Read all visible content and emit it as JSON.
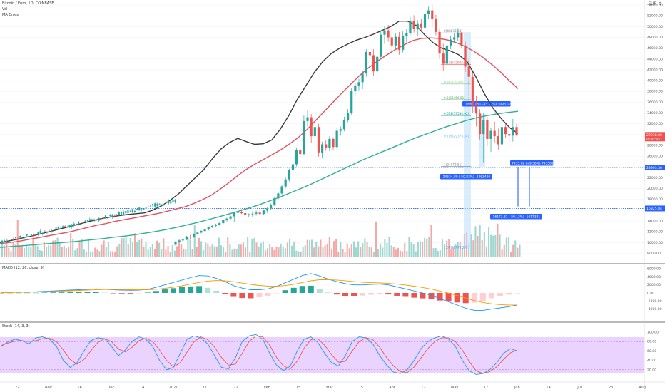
{
  "legend": {
    "symbol": "Bitcoin / Euro, 1D, COINBASE",
    "vol": "Vol",
    "ma_cross": "MA Cross",
    "macd": "MACD (12, 26, close, 9)",
    "stoch": "Stoch (14, 3, 3)"
  },
  "top_right": {
    "currency": "EUR",
    "settings_icon": "gear-icon"
  },
  "colors": {
    "up": "#26a69a",
    "down": "#ef5350",
    "ma_black": "#3a3a3a",
    "ma_red": "#e05360",
    "ma_teal": "#2fb093",
    "level_line": "#2962ff",
    "stoch_band": "#e6ccff",
    "macd_line": "#2196f3",
    "signal_line": "#ff9800",
    "stoch_k": "#2196f3",
    "stoch_d": "#ef5350",
    "fib_0": "#787b86",
    "fib_0236": "#ef5350",
    "fib_0382": "#81c784",
    "fib_05": "#4caf50",
    "fib_0618": "#009688",
    "fib_0786": "#64b5f6",
    "fib_1": "#787b86",
    "fib_1618": "#2196f3"
  },
  "chart_data": {
    "type": "candlestick",
    "title": "Bitcoin / Euro, 1D, COINBASE",
    "y_ticks": [
      "54000.00",
      "52000.00",
      "50000.00",
      "48000.00",
      "46000.00",
      "44000.00",
      "42000.00",
      "40000.00",
      "38000.00",
      "36000.00",
      "34000.00",
      "32000.00",
      "30000.00",
      "28000.00",
      "26000.00",
      "24000.00",
      "22000.00",
      "20000.00",
      "18000.00",
      "16000.00",
      "14000.00",
      "12000.00",
      "10000.00",
      "8000.00"
    ],
    "x_ticks": [
      "22",
      "Nov",
      "16",
      "Dec",
      "14",
      "2021",
      "11",
      "22",
      "Feb",
      "15",
      "Mar",
      "15",
      "Apr",
      "12",
      "May",
      "17",
      "Jun",
      "14",
      "Jul",
      "23",
      "Aug"
    ],
    "price_axis_labels": [
      {
        "text": "29938.00",
        "sub": "01:02:05",
        "price": 29938,
        "color": "#ef5350"
      },
      {
        "text": "23903.30",
        "price": 23903,
        "color": "#2962ff"
      },
      {
        "text": "16325.84",
        "price": 16326,
        "color": "#2962ff"
      }
    ],
    "horizontal_levels": [
      23903,
      16326
    ],
    "fib_levels": [
      {
        "label": "0(48836.24)",
        "ratio": 0,
        "price": 48836
      },
      {
        "label": "0.236(42992.02)",
        "ratio": 0.236,
        "price": 42992
      },
      {
        "label": "0.382(39378.11)",
        "ratio": 0.382,
        "price": 39378
      },
      {
        "label": "0.5(36456.51)",
        "ratio": 0.5,
        "price": 36456
      },
      {
        "label": "0.618(33534.92)",
        "ratio": 0.618,
        "price": 33535
      },
      {
        "label": "0.786(29375.34)",
        "ratio": 0.786,
        "price": 29375
      },
      {
        "label": "1(24076.51)",
        "ratio": 1,
        "price": 24077
      },
      {
        "label": "1.618(8776.55)",
        "ratio": 1.618,
        "price": 8777
      }
    ],
    "measure_labels": [
      {
        "text": "10963.18 (+45.52%) 1096318",
        "price": 35100
      },
      {
        "text": "-24634.80 (-50.83%) -2463480",
        "price": 23400
      },
      {
        "text": "7935.02 (+9.38%) 793502",
        "price": 24900
      },
      {
        "text": "-16173.31 (-50.13%) -1617331",
        "price": 15300
      }
    ],
    "candles_ohlc": [
      [
        9600,
        10300,
        9450,
        10150
      ],
      [
        10150,
        10600,
        10050,
        10400
      ],
      [
        10400,
        10900,
        10200,
        10550
      ],
      [
        10550,
        11250,
        10450,
        11100
      ],
      [
        11100,
        11400,
        10700,
        11000
      ],
      [
        11000,
        11700,
        10900,
        11600
      ],
      [
        11600,
        12000,
        11450,
        11850
      ],
      [
        11850,
        12300,
        11700,
        12150
      ],
      [
        12150,
        12500,
        11950,
        12400
      ],
      [
        12400,
        13000,
        12250,
        12900
      ],
      [
        12900,
        13200,
        12700,
        13100
      ],
      [
        13100,
        13500,
        12800,
        13300
      ],
      [
        13300,
        13700,
        13150,
        13600
      ],
      [
        13600,
        14300,
        13400,
        14200
      ],
      [
        14200,
        14600,
        13900,
        14450
      ],
      [
        14450,
        15000,
        14300,
        14850
      ],
      [
        14850,
        15700,
        13900,
        15500
      ],
      [
        15500,
        16000,
        15100,
        15700
      ],
      [
        15700,
        16200,
        15300,
        15450
      ],
      [
        15450,
        15900,
        14600,
        15100
      ],
      [
        15100,
        15400,
        14700,
        15250
      ],
      [
        15250,
        15800,
        14800,
        15350
      ],
      [
        15350,
        15900,
        15000,
        15550
      ],
      [
        15550,
        16000,
        15200,
        15300
      ],
      [
        15300,
        16100,
        15050,
        15950
      ],
      [
        15950,
        16500,
        15500,
        16300
      ],
      [
        16300,
        17200,
        16100,
        17000
      ],
      [
        17000,
        18500,
        16800,
        18200
      ],
      [
        18200,
        19300,
        17900,
        19100
      ],
      [
        19100,
        20700,
        18900,
        20400
      ],
      [
        20400,
        22000,
        20100,
        21700
      ],
      [
        21700,
        23700,
        21300,
        23400
      ],
      [
        23400,
        24900,
        22900,
        24500
      ],
      [
        24500,
        27500,
        24100,
        27200
      ],
      [
        27200,
        27500,
        26000,
        26400
      ],
      [
        26400,
        33500,
        26200,
        32500
      ],
      [
        32500,
        34500,
        31500,
        33200
      ],
      [
        33200,
        33800,
        28500,
        29700
      ],
      [
        29700,
        32200,
        27300,
        31400
      ],
      [
        31400,
        32000,
        25900,
        26700
      ],
      [
        26700,
        28700,
        25600,
        28200
      ],
      [
        28200,
        28900,
        27000,
        27600
      ],
      [
        27600,
        29700,
        26900,
        29200
      ],
      [
        29200,
        29500,
        27100,
        27700
      ],
      [
        27700,
        31300,
        27300,
        30700
      ],
      [
        30700,
        31500,
        29800,
        31000
      ],
      [
        31000,
        33300,
        30600,
        32700
      ],
      [
        32700,
        34700,
        32300,
        34000
      ],
      [
        34000,
        38700,
        33700,
        38100
      ],
      [
        38100,
        39500,
        37300,
        39100
      ],
      [
        39100,
        40300,
        38200,
        39700
      ],
      [
        39700,
        41900,
        38400,
        41300
      ],
      [
        41300,
        45800,
        40700,
        45300
      ],
      [
        45300,
        46800,
        43200,
        44700
      ],
      [
        44700,
        45800,
        40800,
        41700
      ],
      [
        41700,
        45200,
        40700,
        44400
      ],
      [
        44400,
        49200,
        44000,
        48500
      ],
      [
        48500,
        50100,
        46800,
        49300
      ],
      [
        49300,
        50300,
        47200,
        48000
      ],
      [
        48000,
        49500,
        45200,
        46500
      ],
      [
        46500,
        48700,
        45800,
        48100
      ],
      [
        48100,
        49000,
        44800,
        45700
      ],
      [
        45700,
        49100,
        45200,
        48300
      ],
      [
        48300,
        49500,
        47100,
        48800
      ],
      [
        48800,
        51800,
        48400,
        51000
      ],
      [
        51000,
        52100,
        48900,
        49500
      ],
      [
        49500,
        51200,
        48200,
        50600
      ],
      [
        50600,
        51500,
        49000,
        49800
      ],
      [
        49800,
        52900,
        49500,
        52300
      ],
      [
        52300,
        53700,
        51400,
        53000
      ],
      [
        53000,
        54100,
        49900,
        51500
      ],
      [
        51500,
        52200,
        48400,
        49000
      ],
      [
        49000,
        49700,
        44000,
        45000
      ],
      [
        45000,
        46800,
        41800,
        43100
      ],
      [
        43100,
        47100,
        42900,
        46500
      ],
      [
        46500,
        48300,
        45800,
        47600
      ],
      [
        47600,
        48700,
        46900,
        48000
      ],
      [
        48000,
        49700,
        47400,
        48900
      ],
      [
        48900,
        49000,
        46000,
        46500
      ],
      [
        46500,
        47200,
        41600,
        42600
      ],
      [
        42600,
        44200,
        35300,
        40700
      ],
      [
        40700,
        41600,
        34000,
        35300
      ],
      [
        35300,
        37100,
        31500,
        33900
      ],
      [
        33900,
        34700,
        29100,
        30100
      ],
      [
        30100,
        34000,
        24900,
        32700
      ],
      [
        32700,
        33300,
        27900,
        29200
      ],
      [
        29200,
        31200,
        26800,
        30700
      ],
      [
        30700,
        32400,
        28500,
        29700
      ],
      [
        29700,
        31100,
        27100,
        28200
      ],
      [
        28200,
        32000,
        27900,
        31400
      ],
      [
        31400,
        31900,
        29300,
        30100
      ],
      [
        30100,
        30400,
        27900,
        29800
      ],
      [
        29800,
        32900,
        28700,
        31400
      ],
      [
        31400,
        32000,
        29700,
        29938
      ]
    ],
    "ma_black": [
      10000,
      10300,
      10600,
      11000,
      11300,
      11700,
      12100,
      12500,
      12900,
      13300,
      13700,
      14100,
      14450,
      14750,
      15000,
      15200,
      15350,
      15500,
      16000,
      16800,
      17800,
      19000,
      20500,
      22000,
      23500,
      25500,
      27300,
      28500,
      29300,
      28700,
      28200,
      28300,
      29000,
      31000,
      33500,
      36500,
      39000,
      41500,
      43500,
      45000,
      46000,
      46800,
      47500,
      48000,
      48600,
      49300,
      50000,
      51000,
      51000,
      50200,
      48500,
      47000,
      46000,
      45500,
      44800,
      43500,
      40800,
      37700,
      35000,
      33000,
      31300,
      30200
    ],
    "ma_red": [
      9800,
      10000,
      10200,
      10500,
      10800,
      11100,
      11400,
      11700,
      12000,
      12400,
      12800,
      13200,
      13500,
      13900,
      14200,
      14500,
      14800,
      15100,
      15400,
      15800,
      16200,
      16600,
      17200,
      17900,
      18700,
      19800,
      21000,
      22300,
      23500,
      24500,
      25400,
      26300,
      27200,
      28300,
      29500,
      31000,
      32700,
      34400,
      36100,
      37800,
      39400,
      41000,
      42400,
      43600,
      44700,
      45700,
      46600,
      47400,
      47800,
      47900,
      47800,
      47500,
      47000,
      46300,
      45400,
      44300,
      43000,
      41600,
      40000,
      38500
    ],
    "ma_teal": [
      9100,
      9250,
      9400,
      9550,
      9700,
      9850,
      10000,
      10150,
      10350,
      10550,
      10750,
      11000,
      11200,
      11450,
      11750,
      12050,
      12400,
      12800,
      13250,
      13700,
      14200,
      14700,
      15250,
      15800,
      16400,
      17000,
      17700,
      18400,
      19200,
      20000,
      20800,
      21700,
      22600,
      23500,
      24400,
      25300,
      26100,
      26900,
      27700,
      28500,
      29300,
      30000,
      30700,
      31400,
      32000,
      32600,
      33100,
      33500,
      33850,
      34100,
      34300
    ]
  },
  "macd_panel": {
    "y_ticks": [
      "6000.00",
      "4000.00",
      "2000.00",
      "0.00",
      "-2000.00",
      "-4000.00"
    ],
    "macd": [
      100,
      150,
      200,
      250,
      300,
      400,
      500,
      600,
      700,
      800,
      900,
      1000,
      900,
      800,
      700,
      650,
      700,
      900,
      1400,
      2000,
      2600,
      3200,
      3800,
      4300,
      4200,
      3600,
      2800,
      1800,
      1200,
      800,
      800,
      1000,
      1600,
      2500,
      3400,
      4300,
      4800,
      4200,
      3400,
      2800,
      2300,
      2000,
      2000,
      2100,
      2200,
      2000,
      1500,
      1000,
      500,
      0,
      -600,
      -1400,
      -2200,
      -3000,
      -3800,
      -4300,
      -4300,
      -4000,
      -3700,
      -3400,
      -3000
    ],
    "signal": [
      80,
      110,
      150,
      190,
      240,
      300,
      370,
      450,
      530,
      620,
      710,
      800,
      840,
      850,
      830,
      800,
      780,
      800,
      920,
      1130,
      1420,
      1770,
      2180,
      2600,
      2930,
      3070,
      3010,
      2770,
      2450,
      2120,
      1860,
      1690,
      1670,
      1830,
      2140,
      2570,
      3020,
      3260,
      3290,
      3190,
      3010,
      2810,
      2650,
      2540,
      2470,
      2370,
      2200,
      1960,
      1670,
      1340,
      950,
      480,
      -60,
      -650,
      -1280,
      -1880,
      -2360,
      -2690,
      -2890,
      -2990,
      -2990
    ],
    "hist": [
      20,
      40,
      50,
      60,
      60,
      100,
      130,
      150,
      170,
      180,
      190,
      200,
      60,
      -50,
      -130,
      -150,
      -80,
      100,
      480,
      870,
      1180,
      1430,
      1620,
      1700,
      1270,
      530,
      -210,
      -970,
      -1250,
      -1320,
      -1060,
      -690,
      -70,
      670,
      1260,
      1730,
      1780,
      940,
      110,
      -390,
      -710,
      -810,
      -650,
      -440,
      -270,
      -370,
      -700,
      -960,
      -1170,
      -1340,
      -1550,
      -1880,
      -2140,
      -2350,
      -2520,
      -2420,
      -1940,
      -1310,
      -810,
      -410,
      -10
    ]
  },
  "stoch_panel": {
    "y_ticks": [
      "100.00",
      "80.00",
      "60.00",
      "40.00",
      "20.00"
    ],
    "band": [
      20,
      80
    ],
    "k": [
      70,
      80,
      85,
      82,
      75,
      88,
      90,
      85,
      70,
      40,
      25,
      35,
      60,
      82,
      88,
      86,
      70,
      50,
      62,
      80,
      90,
      85,
      70,
      40,
      20,
      25,
      55,
      85,
      92,
      88,
      75,
      50,
      25,
      22,
      45,
      80,
      92,
      95,
      85,
      55,
      30,
      18,
      28,
      60,
      85,
      90,
      78,
      55,
      35,
      28,
      50,
      80,
      90,
      88,
      75,
      50,
      30,
      15,
      12,
      20,
      40,
      65,
      80,
      88,
      92,
      85,
      70,
      40,
      18,
      10,
      12,
      20,
      35,
      55,
      65,
      60
    ],
    "d": [
      72,
      77,
      81,
      82,
      80,
      82,
      86,
      87,
      80,
      62,
      42,
      32,
      42,
      60,
      78,
      86,
      80,
      64,
      58,
      68,
      82,
      87,
      80,
      62,
      40,
      26,
      35,
      58,
      80,
      90,
      84,
      68,
      46,
      30,
      32,
      55,
      80,
      92,
      90,
      72,
      46,
      28,
      22,
      38,
      66,
      84,
      86,
      72,
      52,
      36,
      38,
      60,
      80,
      88,
      84,
      68,
      46,
      28,
      16,
      14,
      26,
      45,
      65,
      80,
      88,
      88,
      80,
      62,
      38,
      18,
      12,
      16,
      26,
      42,
      56,
      62
    ]
  }
}
